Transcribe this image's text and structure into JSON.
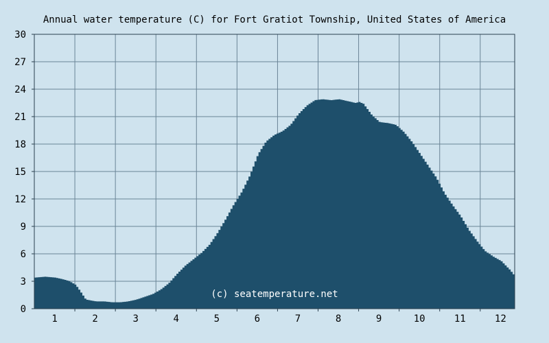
{
  "chart_data": {
    "type": "area",
    "title": "Annual water temperature (C) for Fort Gratiot Township, United States of America",
    "xlabel": "",
    "ylabel": "",
    "watermark": "(c) seatemperature.net",
    "ylim": [
      0,
      30
    ],
    "y_ticks": [
      "0",
      "3",
      "6",
      "9",
      "12",
      "15",
      "18",
      "21",
      "24",
      "27",
      "30"
    ],
    "x_ticks": [
      "1",
      "2",
      "3",
      "4",
      "5",
      "6",
      "7",
      "8",
      "9",
      "10",
      "11",
      "12"
    ],
    "xlim": [
      0.5,
      12.35
    ],
    "grid": true,
    "colors": {
      "background": "#cfe3ee",
      "fill": "#1e4f6b",
      "grid": "#6a8496",
      "axis": "#2a3f4e"
    },
    "x": [
      0.5,
      0.75,
      1.0,
      1.2,
      1.35,
      1.5,
      1.6,
      1.75,
      2.0,
      2.2,
      2.4,
      2.6,
      2.8,
      3.0,
      3.2,
      3.4,
      3.6,
      3.8,
      4.0,
      4.2,
      4.4,
      4.6,
      4.8,
      5.0,
      5.2,
      5.4,
      5.6,
      5.8,
      6.0,
      6.1,
      6.2,
      6.4,
      6.6,
      6.8,
      7.0,
      7.2,
      7.4,
      7.6,
      7.8,
      8.0,
      8.2,
      8.4,
      8.5,
      8.6,
      8.8,
      9.0,
      9.2,
      9.4,
      9.6,
      9.8,
      10.0,
      10.2,
      10.4,
      10.6,
      10.8,
      11.0,
      11.2,
      11.4,
      11.6,
      11.8,
      12.0,
      12.2,
      12.35
    ],
    "values": [
      3.4,
      3.5,
      3.4,
      3.2,
      3.0,
      2.6,
      2.0,
      1.0,
      0.8,
      0.8,
      0.7,
      0.7,
      0.8,
      1.0,
      1.3,
      1.6,
      2.1,
      2.8,
      3.8,
      4.7,
      5.4,
      6.1,
      7.0,
      8.3,
      9.8,
      11.4,
      12.8,
      14.6,
      16.9,
      17.6,
      18.3,
      19.0,
      19.4,
      20.1,
      21.3,
      22.2,
      22.8,
      22.9,
      22.8,
      22.9,
      22.7,
      22.5,
      22.6,
      22.4,
      21.2,
      20.4,
      20.3,
      20.1,
      19.3,
      18.2,
      16.9,
      15.6,
      14.3,
      12.6,
      11.3,
      10.1,
      8.6,
      7.4,
      6.3,
      5.7,
      5.2,
      4.3,
      3.5
    ]
  }
}
